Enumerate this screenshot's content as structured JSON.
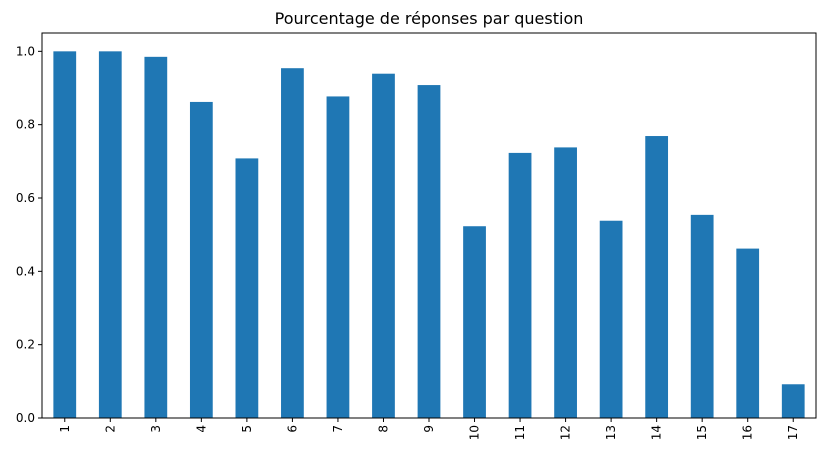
{
  "chart_data": {
    "type": "bar",
    "title": "Pourcentage de réponses par question",
    "xlabel": "",
    "ylabel": "",
    "categories": [
      "1",
      "2",
      "3",
      "4",
      "5",
      "6",
      "7",
      "8",
      "9",
      "10",
      "11",
      "12",
      "13",
      "14",
      "15",
      "16",
      "17"
    ],
    "values": [
      1.0,
      1.0,
      0.985,
      0.862,
      0.708,
      0.954,
      0.877,
      0.939,
      0.908,
      0.523,
      0.723,
      0.738,
      0.538,
      0.769,
      0.554,
      0.462,
      0.092
    ],
    "ylim": [
      0.0,
      1.05
    ],
    "yticks": [
      "0.0",
      "0.2",
      "0.4",
      "0.6",
      "0.8",
      "1.0"
    ],
    "grid": false,
    "legend": "none",
    "bar_color": "#1f77b4"
  }
}
